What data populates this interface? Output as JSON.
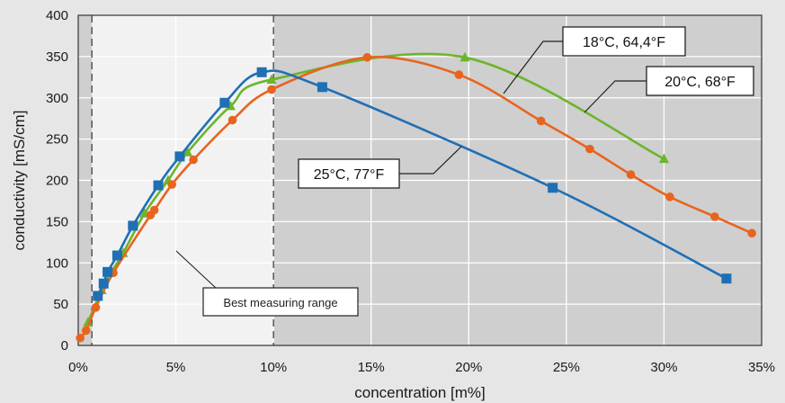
{
  "chart_data": {
    "type": "line",
    "title": "",
    "xlabel": "concentration [m%]",
    "ylabel": "conductivity [mS/cm]",
    "xlim": [
      0,
      35
    ],
    "ylim": [
      0,
      400
    ],
    "x_ticks": [
      0,
      5,
      10,
      15,
      20,
      25,
      30,
      35
    ],
    "x_tick_labels": [
      "0%",
      "5%",
      "10%",
      "15%",
      "20%",
      "25%",
      "30%",
      "35%"
    ],
    "y_ticks": [
      0,
      50,
      100,
      150,
      200,
      250,
      300,
      350,
      400
    ],
    "y_tick_labels": [
      "0",
      "50",
      "100",
      "150",
      "200",
      "250",
      "300",
      "350",
      "400"
    ],
    "grid": true,
    "best_range": {
      "x_start": 0.7,
      "x_end": 10,
      "label": "Best measuring range"
    },
    "series": [
      {
        "name": "25°C, 77°F",
        "color": "#1f6fb4",
        "marker": "square",
        "points": [
          [
            1.0,
            60
          ],
          [
            1.3,
            75
          ],
          [
            1.5,
            89
          ],
          [
            2.0,
            109
          ],
          [
            2.8,
            145
          ],
          [
            4.1,
            194
          ],
          [
            5.2,
            229
          ],
          [
            7.5,
            294
          ],
          [
            9.4,
            331
          ],
          [
            12.5,
            313
          ],
          [
            24.3,
            191
          ],
          [
            33.2,
            81
          ]
        ]
      },
      {
        "name": "20°C, 68°F",
        "color": "#e8641e",
        "marker": "circle",
        "points": [
          [
            0.1,
            9
          ],
          [
            0.4,
            18
          ],
          [
            0.9,
            46
          ],
          [
            1.8,
            88
          ],
          [
            3.7,
            158
          ],
          [
            3.9,
            164
          ],
          [
            4.8,
            195
          ],
          [
            5.9,
            225
          ],
          [
            7.9,
            273
          ],
          [
            9.9,
            310
          ],
          [
            14.8,
            349
          ],
          [
            19.5,
            328
          ],
          [
            23.7,
            272
          ],
          [
            26.2,
            238
          ],
          [
            28.3,
            207
          ],
          [
            30.3,
            180
          ],
          [
            32.6,
            156
          ],
          [
            34.5,
            136
          ]
        ]
      },
      {
        "name": "18°C, 64,4°F",
        "color": "#6cb52c",
        "marker": "triangle",
        "points": [
          [
            0.5,
            28
          ],
          [
            1.2,
            67
          ],
          [
            1.7,
            89
          ],
          [
            2.3,
            112
          ],
          [
            3.4,
            160
          ],
          [
            4.6,
            200
          ],
          [
            5.6,
            234
          ],
          [
            7.8,
            290
          ],
          [
            9.9,
            322
          ],
          [
            19.8,
            349
          ],
          [
            30.0,
            226
          ]
        ]
      }
    ],
    "callouts": [
      {
        "series": "18°C, 64,4°F",
        "text": "18°C, 64,4°F"
      },
      {
        "series": "20°C, 68°F",
        "text": "20°C, 68°F"
      },
      {
        "series": "25°C, 77°F",
        "text": "25°C, 77°F"
      }
    ]
  }
}
